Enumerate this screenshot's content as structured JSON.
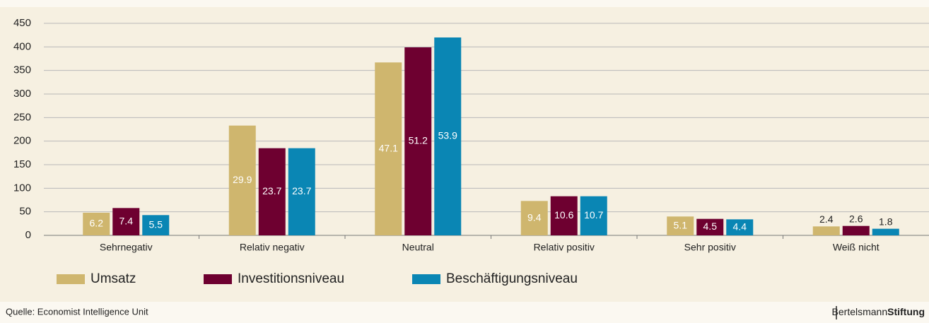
{
  "chart_data": {
    "type": "bar",
    "categories": [
      "Sehrnegativ",
      "Relativ negativ",
      "Neutral",
      "Relativ positiv",
      "Sehr positiv",
      "Weiß nicht"
    ],
    "series": [
      {
        "name": "Umsatz",
        "color": "#cfb66e",
        "values": [
          48,
          233,
          367,
          73,
          40,
          19
        ],
        "percentages": [
          "6.2",
          "29.9",
          "47.1",
          "9.4",
          "5.1",
          "2.4"
        ]
      },
      {
        "name": "Investitionsniveau",
        "color": "#6e0030",
        "values": [
          58,
          185,
          399,
          83,
          35,
          20
        ],
        "percentages": [
          "7.4",
          "23.7",
          "51.2",
          "10.6",
          "4.5",
          "2.6"
        ]
      },
      {
        "name": "Beschäftigungsniveau",
        "color": "#0a86b4",
        "values": [
          43,
          185,
          420,
          83,
          34,
          14
        ],
        "percentages": [
          "5.5",
          "23.7",
          "53.9",
          "10.7",
          "4.4",
          "1.8"
        ]
      }
    ],
    "ylim": [
      0,
      450
    ],
    "yticks": [
      0,
      50,
      100,
      150,
      200,
      250,
      300,
      350,
      400,
      450
    ],
    "grid": true,
    "legend": "bottom"
  },
  "footer": {
    "source": "Quelle: Economist Intelligence Unit",
    "logo": [
      "Bertelsmann",
      "Stiftung"
    ]
  }
}
